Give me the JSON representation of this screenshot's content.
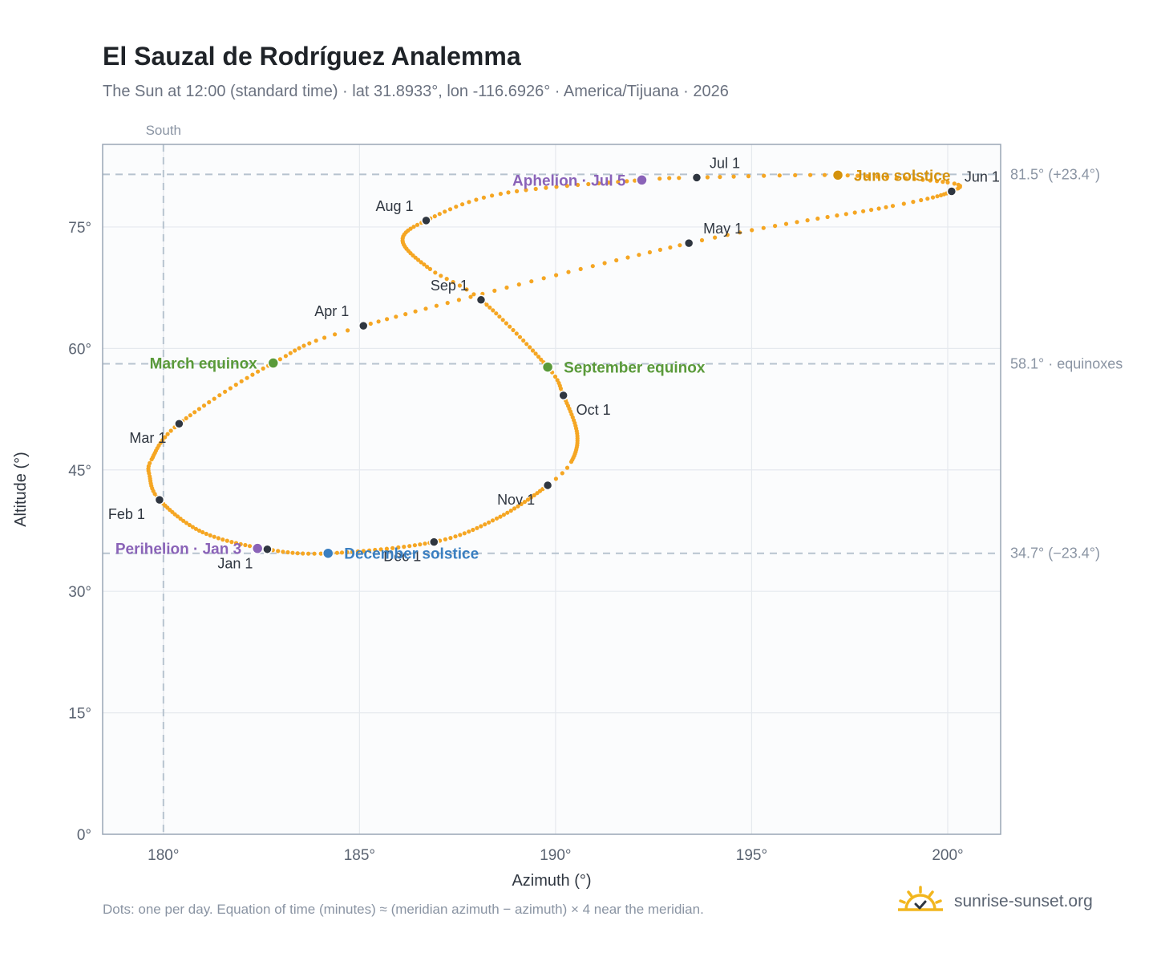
{
  "header": {
    "title": "El Sauzal de Rodríguez Analemma",
    "subtitle": "The Sun at 12:00 (standard time) · lat 31.8933°, lon -116.6926° · America/Tijuana · 2026"
  },
  "footer": {
    "note": "Dots: one per day. Equation of time (minutes) ≈ (meridian azimuth − azimuth) × 4 near the meridian.",
    "brand": "sunrise-sunset.org",
    "brand_icon": "sun-logo-icon"
  },
  "colors": {
    "curve": "#f5a623",
    "month_dot": "#2f3640",
    "equinox": "#5a9a3a",
    "june_solstice": "#d4920c",
    "december_solstice": "#3a7fc1",
    "apsis": "#8a63b8",
    "grid": "#e5e9ee",
    "reference_line": "#b7c3cf",
    "frame": "#9aa6b5",
    "plot_bg": "#fbfcfd"
  },
  "chart_data": {
    "type": "scatter",
    "xlabel": "Azimuth (°)",
    "ylabel": "Altitude (°)",
    "xlim": [
      178.45,
      201.35
    ],
    "ylim": [
      0,
      85.2
    ],
    "x_ticks": [
      {
        "value": 180,
        "label": "180°"
      },
      {
        "value": 185,
        "label": "185°"
      },
      {
        "value": 190,
        "label": "190°"
      },
      {
        "value": 195,
        "label": "195°"
      },
      {
        "value": 200,
        "label": "200°"
      }
    ],
    "y_ticks": [
      {
        "value": 0,
        "label": "0°"
      },
      {
        "value": 15,
        "label": "15°"
      },
      {
        "value": 30,
        "label": "30°"
      },
      {
        "value": 45,
        "label": "45°"
      },
      {
        "value": 60,
        "label": "60°"
      },
      {
        "value": 75,
        "label": "75°"
      }
    ],
    "grid": true,
    "reference_vertical": {
      "x": 180,
      "label": "South"
    },
    "reference_horizontal": [
      {
        "y": 81.5,
        "label": "81.5° (+23.4°)"
      },
      {
        "y": 58.1,
        "label": "58.1° · equinoxes"
      },
      {
        "y": 34.7,
        "label": "34.7° (−23.4°)"
      }
    ],
    "month_markers": [
      {
        "label": "Jan 1",
        "azimuth": 182.65,
        "altitude": 35.2
      },
      {
        "label": "Feb 1",
        "azimuth": 179.9,
        "altitude": 41.3
      },
      {
        "label": "Mar 1",
        "azimuth": 180.4,
        "altitude": 50.7
      },
      {
        "label": "Apr 1",
        "azimuth": 185.1,
        "altitude": 62.8
      },
      {
        "label": "May 1",
        "azimuth": 193.4,
        "altitude": 73.0
      },
      {
        "label": "Jun 1",
        "azimuth": 200.1,
        "altitude": 79.4
      },
      {
        "label": "Jul 1",
        "azimuth": 193.6,
        "altitude": 81.1
      },
      {
        "label": "Aug 1",
        "azimuth": 186.7,
        "altitude": 75.8
      },
      {
        "label": "Sep 1",
        "azimuth": 188.1,
        "altitude": 66.0
      },
      {
        "label": "Oct 1",
        "azimuth": 190.2,
        "altitude": 54.2
      },
      {
        "label": "Nov 1",
        "azimuth": 189.8,
        "altitude": 43.1
      },
      {
        "label": "Dec 1",
        "azimuth": 186.9,
        "altitude": 36.1
      }
    ],
    "events": [
      {
        "label": "March equinox",
        "azimuth": 182.8,
        "altitude": 58.2,
        "color": "#5a9a3a",
        "label_side": "left"
      },
      {
        "label": "June solstice",
        "azimuth": 197.2,
        "altitude": 81.4,
        "color": "#d4920c",
        "label_side": "right"
      },
      {
        "label": "September equinox",
        "azimuth": 189.8,
        "altitude": 57.7,
        "color": "#5a9a3a",
        "label_side": "right"
      },
      {
        "label": "December solstice",
        "azimuth": 184.2,
        "altitude": 34.7,
        "color": "#3a7fc1",
        "label_side": "right"
      },
      {
        "label": "Perihelion · Jan 3",
        "azimuth": 182.4,
        "altitude": 35.3,
        "color": "#8a63b8",
        "label_side": "left"
      },
      {
        "label": "Aphelion · Jul 5",
        "azimuth": 192.2,
        "altitude": 80.8,
        "color": "#8a63b8",
        "label_side": "left"
      }
    ],
    "daily_path_anchors": [
      {
        "day": 0,
        "azimuth": 182.65,
        "altitude": 35.2
      },
      {
        "day": 15,
        "azimuth": 181.0,
        "altitude": 37.3
      },
      {
        "day": 31,
        "azimuth": 179.9,
        "altitude": 41.3
      },
      {
        "day": 40,
        "azimuth": 179.65,
        "altitude": 44.2
      },
      {
        "day": 46,
        "azimuth": 179.7,
        "altitude": 46.3
      },
      {
        "day": 59,
        "azimuth": 180.4,
        "altitude": 50.7
      },
      {
        "day": 78,
        "azimuth": 182.8,
        "altitude": 58.2
      },
      {
        "day": 90,
        "azimuth": 185.1,
        "altitude": 62.8
      },
      {
        "day": 120,
        "azimuth": 193.4,
        "altitude": 73.0
      },
      {
        "day": 140,
        "azimuth": 198.6,
        "altitude": 77.6
      },
      {
        "day": 151,
        "azimuth": 200.1,
        "altitude": 79.4
      },
      {
        "day": 158,
        "azimuth": 200.0,
        "altitude": 80.5
      },
      {
        "day": 171,
        "azimuth": 197.2,
        "altitude": 81.4
      },
      {
        "day": 181,
        "azimuth": 193.6,
        "altitude": 81.1
      },
      {
        "day": 185,
        "azimuth": 192.2,
        "altitude": 80.8
      },
      {
        "day": 200,
        "azimuth": 188.6,
        "altitude": 79.1
      },
      {
        "day": 212,
        "azimuth": 186.7,
        "altitude": 75.8
      },
      {
        "day": 222,
        "azimuth": 186.1,
        "altitude": 73.3
      },
      {
        "day": 235,
        "azimuth": 186.8,
        "altitude": 69.8
      },
      {
        "day": 243,
        "azimuth": 188.1,
        "altitude": 66.0
      },
      {
        "day": 265,
        "azimuth": 189.8,
        "altitude": 57.7
      },
      {
        "day": 273,
        "azimuth": 190.2,
        "altitude": 54.2
      },
      {
        "day": 287,
        "azimuth": 190.55,
        "altitude": 49.5
      },
      {
        "day": 300,
        "azimuth": 190.4,
        "altitude": 46.0
      },
      {
        "day": 304,
        "azimuth": 189.8,
        "altitude": 43.1
      },
      {
        "day": 320,
        "azimuth": 188.5,
        "altitude": 39.0
      },
      {
        "day": 334,
        "azimuth": 186.9,
        "altitude": 36.1
      },
      {
        "day": 354,
        "azimuth": 184.2,
        "altitude": 34.7
      },
      {
        "day": 365,
        "azimuth": 182.65,
        "altitude": 35.2
      }
    ]
  }
}
